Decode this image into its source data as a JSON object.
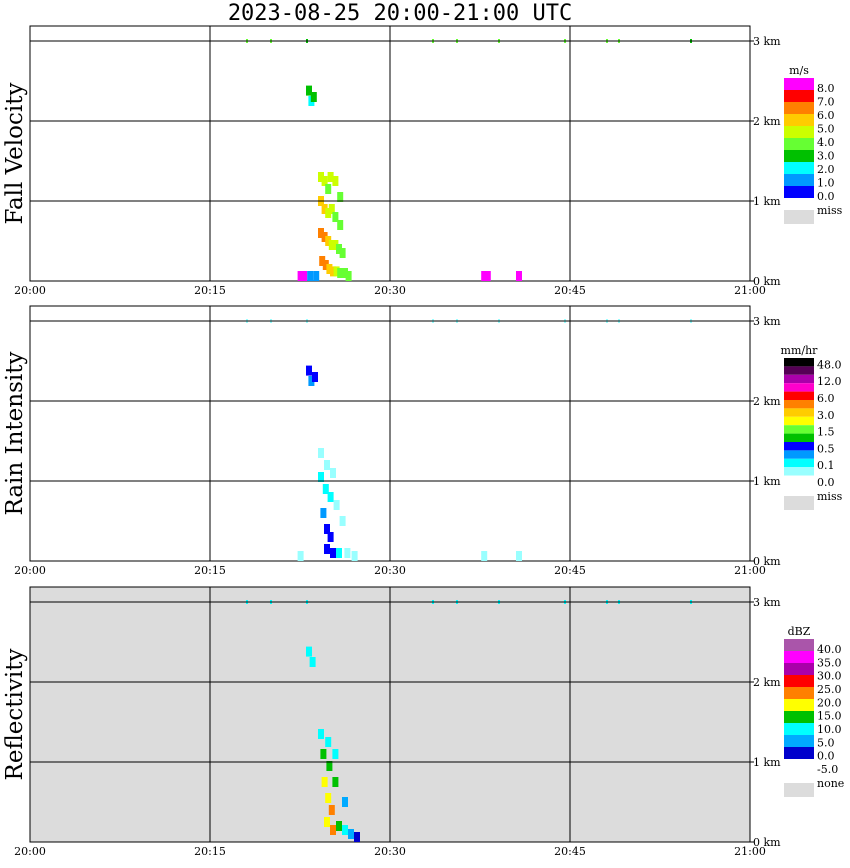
{
  "title": "2023-08-25  20:00-21:00 UTC",
  "chart_data": [
    {
      "type": "heatmap",
      "name": "Fall Velocity",
      "ylabel": "Fall Velocity",
      "x_ticks": [
        "20:00",
        "20:15",
        "20:30",
        "20:45",
        "21:00"
      ],
      "y_ticks": [
        "0 km",
        "1 km",
        "2 km",
        "3 km"
      ],
      "xlim": [
        "20:00",
        "21:00"
      ],
      "ylim_km": [
        0,
        3
      ],
      "background": "#ffffff",
      "colorbar": {
        "unit": "m/s",
        "labels": [
          "8.0",
          "7.0",
          "6.0",
          "5.0",
          "4.0",
          "3.0",
          "2.0",
          "1.0",
          "0.0"
        ],
        "colors": [
          "#ff00ff",
          "#ff0000",
          "#ff8000",
          "#ffcc00",
          "#ccff00",
          "#66ff33",
          "#00c000",
          "#00ffff",
          "#0099ff",
          "#0000ff"
        ],
        "missing_label": "miss",
        "missing_color": "#dcdcdc"
      },
      "echoes": [
        {
          "t": 23.0,
          "h": 2.38,
          "value": 2.0
        },
        {
          "t": 23.2,
          "h": 2.25,
          "value": 1.0
        },
        {
          "t": 23.4,
          "h": 2.3,
          "value": 2.0
        },
        {
          "t": 22.3,
          "h": 0.05,
          "value": 8.0
        },
        {
          "t": 22.6,
          "h": 0.04,
          "value": 8.0
        },
        {
          "t": 23.1,
          "h": 0.0,
          "value": 0.3
        },
        {
          "t": 23.6,
          "h": 0.0,
          "value": 0.5
        },
        {
          "t": 24.0,
          "h": 1.3,
          "value": 4.5
        },
        {
          "t": 24.3,
          "h": 1.25,
          "value": 4.5
        },
        {
          "t": 24.6,
          "h": 1.15,
          "value": 3.5
        },
        {
          "t": 24.8,
          "h": 1.3,
          "value": 4.5
        },
        {
          "t": 25.2,
          "h": 1.25,
          "value": 4.5
        },
        {
          "t": 25.6,
          "h": 1.05,
          "value": 3.5
        },
        {
          "t": 24.0,
          "h": 1.0,
          "value": 5.5
        },
        {
          "t": 24.3,
          "h": 0.9,
          "value": 5.5
        },
        {
          "t": 24.6,
          "h": 0.85,
          "value": 4.5
        },
        {
          "t": 24.9,
          "h": 0.9,
          "value": 4.5
        },
        {
          "t": 25.2,
          "h": 0.8,
          "value": 3.5
        },
        {
          "t": 25.6,
          "h": 0.7,
          "value": 3.5
        },
        {
          "t": 24.0,
          "h": 0.6,
          "value": 6.5
        },
        {
          "t": 24.3,
          "h": 0.55,
          "value": 6.5
        },
        {
          "t": 24.6,
          "h": 0.5,
          "value": 5.5
        },
        {
          "t": 24.9,
          "h": 0.45,
          "value": 4.5
        },
        {
          "t": 25.2,
          "h": 0.45,
          "value": 4.5
        },
        {
          "t": 25.5,
          "h": 0.4,
          "value": 3.5
        },
        {
          "t": 25.8,
          "h": 0.35,
          "value": 3.5
        },
        {
          "t": 24.1,
          "h": 0.25,
          "value": 6.5
        },
        {
          "t": 24.4,
          "h": 0.2,
          "value": 6.5
        },
        {
          "t": 24.7,
          "h": 0.15,
          "value": 5.5
        },
        {
          "t": 25.0,
          "h": 0.12,
          "value": 5.5
        },
        {
          "t": 25.3,
          "h": 0.12,
          "value": 4.5
        },
        {
          "t": 25.6,
          "h": 0.1,
          "value": 3.5
        },
        {
          "t": 26.0,
          "h": 0.1,
          "value": 3.2
        },
        {
          "t": 26.3,
          "h": 0.05,
          "value": 3.2
        },
        {
          "t": 37.6,
          "h": 0.03,
          "value": 8.0
        },
        {
          "t": 37.9,
          "h": 0.03,
          "value": 8.0
        },
        {
          "t": 40.5,
          "h": 0.03,
          "value": 8.0
        },
        {
          "t": 18.0,
          "h": 3.0,
          "value": 3.5
        },
        {
          "t": 20.0,
          "h": 3.0,
          "value": 3.5
        },
        {
          "t": 23.0,
          "h": 3.0,
          "value": 2.0
        },
        {
          "t": 33.5,
          "h": 3.0,
          "value": 3.5
        },
        {
          "t": 35.5,
          "h": 3.0,
          "value": 3.5
        },
        {
          "t": 39.0,
          "h": 3.0,
          "value": 3.5
        },
        {
          "t": 44.5,
          "h": 3.0,
          "value": 3.5
        },
        {
          "t": 48.0,
          "h": 3.0,
          "value": 3.5
        },
        {
          "t": 49.0,
          "h": 3.0,
          "value": 3.5
        },
        {
          "t": 55.0,
          "h": 3.0,
          "value": 2.0
        }
      ]
    },
    {
      "type": "heatmap",
      "name": "Rain Intensity",
      "ylabel": "Rain Intensity",
      "x_ticks": [
        "20:00",
        "20:15",
        "20:30",
        "20:45",
        "21:00"
      ],
      "y_ticks": [
        "0 km",
        "1 km",
        "2 km",
        "3 km"
      ],
      "xlim": [
        "20:00",
        "21:00"
      ],
      "ylim_km": [
        0,
        3
      ],
      "background": "#ffffff",
      "colorbar": {
        "unit": "mm/hr",
        "labels": [
          "48.0",
          "12.0",
          "6.0",
          "3.0",
          "1.5",
          "0.5",
          "0.1",
          "0.0"
        ],
        "colors": [
          "#000000",
          "#550055",
          "#aa00aa",
          "#ff00cc",
          "#ff0000",
          "#ff8000",
          "#ffcc00",
          "#ffff00",
          "#66ff33",
          "#00c000",
          "#0000ff",
          "#0099ff",
          "#00ffff",
          "#99ffff",
          "#ffffff"
        ],
        "missing_label": "miss",
        "missing_color": "#dcdcdc"
      },
      "echoes": [
        {
          "t": 23.0,
          "h": 2.38,
          "value": 0.7
        },
        {
          "t": 23.2,
          "h": 2.25,
          "value": 0.4
        },
        {
          "t": 23.5,
          "h": 2.3,
          "value": 0.7
        },
        {
          "t": 22.3,
          "h": 0.05,
          "value": 0.08
        },
        {
          "t": 24.0,
          "h": 1.35,
          "value": 0.08
        },
        {
          "t": 24.5,
          "h": 1.2,
          "value": 0.08
        },
        {
          "t": 25.0,
          "h": 1.1,
          "value": 0.08
        },
        {
          "t": 24.0,
          "h": 1.05,
          "value": 0.25
        },
        {
          "t": 24.4,
          "h": 0.9,
          "value": 0.25
        },
        {
          "t": 24.8,
          "h": 0.8,
          "value": 0.25
        },
        {
          "t": 25.3,
          "h": 0.7,
          "value": 0.08
        },
        {
          "t": 25.8,
          "h": 0.5,
          "value": 0.08
        },
        {
          "t": 24.2,
          "h": 0.6,
          "value": 0.4
        },
        {
          "t": 24.5,
          "h": 0.4,
          "value": 0.7
        },
        {
          "t": 24.8,
          "h": 0.3,
          "value": 0.7
        },
        {
          "t": 24.5,
          "h": 0.15,
          "value": 0.7
        },
        {
          "t": 25.0,
          "h": 0.1,
          "value": 0.7
        },
        {
          "t": 25.5,
          "h": 0.1,
          "value": 0.25
        },
        {
          "t": 26.2,
          "h": 0.1,
          "value": 0.08
        },
        {
          "t": 26.8,
          "h": 0.05,
          "value": 0.08
        },
        {
          "t": 37.6,
          "h": 0.03,
          "value": 0.08
        },
        {
          "t": 40.5,
          "h": 0.03,
          "value": 0.08
        },
        {
          "t": 18.0,
          "h": 3.0,
          "value": 0.08
        },
        {
          "t": 20.0,
          "h": 3.0,
          "value": 0.08
        },
        {
          "t": 23.0,
          "h": 3.0,
          "value": 0.08
        },
        {
          "t": 33.5,
          "h": 3.0,
          "value": 0.08
        },
        {
          "t": 35.5,
          "h": 3.0,
          "value": 0.08
        },
        {
          "t": 39.0,
          "h": 3.0,
          "value": 0.08
        },
        {
          "t": 44.5,
          "h": 3.0,
          "value": 0.08
        },
        {
          "t": 48.0,
          "h": 3.0,
          "value": 0.08
        },
        {
          "t": 49.0,
          "h": 3.0,
          "value": 0.08
        },
        {
          "t": 55.0,
          "h": 3.0,
          "value": 0.08
        }
      ]
    },
    {
      "type": "heatmap",
      "name": "Reflectivity",
      "ylabel": "Reflectivity",
      "x_ticks": [
        "20:00",
        "20:15",
        "20:30",
        "20:45",
        "21:00"
      ],
      "y_ticks": [
        "0 km",
        "1 km",
        "2 km",
        "3 km"
      ],
      "xlim": [
        "20:00",
        "21:00"
      ],
      "ylim_km": [
        0,
        3
      ],
      "background": "#dcdcdc",
      "colorbar": {
        "unit": "dBZ",
        "labels": [
          "40.0",
          "35.0",
          "30.0",
          "25.0",
          "20.0",
          "15.0",
          "10.0",
          "5.0",
          "0.0",
          "-5.0"
        ],
        "colors": [
          "#aa55aa",
          "#ff00ff",
          "#aa00aa",
          "#ff0000",
          "#ff8000",
          "#ffff00",
          "#00c000",
          "#00ffff",
          "#00aaff",
          "#0000cc",
          "#ffffff"
        ],
        "missing_label": "none",
        "missing_color": "#dcdcdc"
      },
      "echoes": [
        {
          "t": 23.0,
          "h": 2.38,
          "value": 7.0
        },
        {
          "t": 23.3,
          "h": 2.25,
          "value": 7.0
        },
        {
          "t": 24.0,
          "h": 1.35,
          "value": 7.0
        },
        {
          "t": 24.6,
          "h": 1.25,
          "value": 7.0
        },
        {
          "t": 25.2,
          "h": 1.1,
          "value": 7.0
        },
        {
          "t": 24.2,
          "h": 1.1,
          "value": 12.0
        },
        {
          "t": 24.7,
          "h": 0.95,
          "value": 12.0
        },
        {
          "t": 25.2,
          "h": 0.75,
          "value": 12.0
        },
        {
          "t": 24.3,
          "h": 0.75,
          "value": 17.0
        },
        {
          "t": 24.6,
          "h": 0.55,
          "value": 17.0
        },
        {
          "t": 24.9,
          "h": 0.4,
          "value": 22.0
        },
        {
          "t": 24.5,
          "h": 0.25,
          "value": 17.0
        },
        {
          "t": 25.0,
          "h": 0.15,
          "value": 22.0
        },
        {
          "t": 25.5,
          "h": 0.2,
          "value": 12.0
        },
        {
          "t": 26.0,
          "h": 0.15,
          "value": 7.0
        },
        {
          "t": 26.5,
          "h": 0.1,
          "value": 2.0
        },
        {
          "t": 27.0,
          "h": 0.06,
          "value": -2.0
        },
        {
          "t": 26.0,
          "h": 0.5,
          "value": 2.0
        },
        {
          "t": 18.0,
          "h": 3.0,
          "value": 7.0
        },
        {
          "t": 20.0,
          "h": 3.0,
          "value": 7.0
        },
        {
          "t": 23.0,
          "h": 3.0,
          "value": 7.0
        },
        {
          "t": 33.5,
          "h": 3.0,
          "value": 7.0
        },
        {
          "t": 35.5,
          "h": 3.0,
          "value": 7.0
        },
        {
          "t": 39.0,
          "h": 3.0,
          "value": 7.0
        },
        {
          "t": 44.5,
          "h": 3.0,
          "value": 7.0
        },
        {
          "t": 48.0,
          "h": 3.0,
          "value": 7.0
        },
        {
          "t": 49.0,
          "h": 3.0,
          "value": 7.0
        },
        {
          "t": 55.0,
          "h": 3.0,
          "value": 7.0
        }
      ]
    }
  ]
}
